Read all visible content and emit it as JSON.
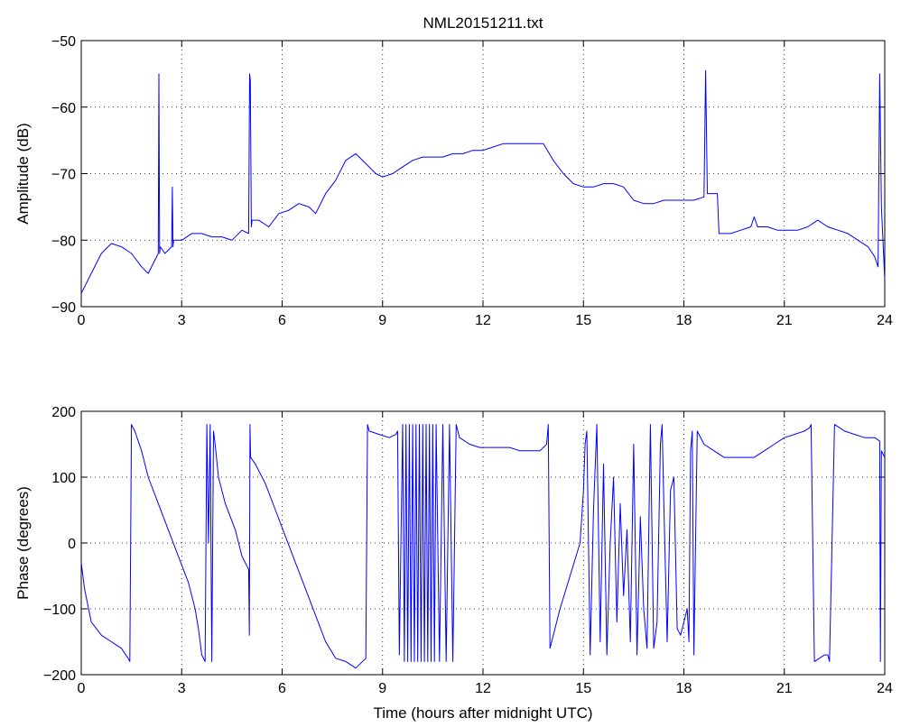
{
  "chart_data": [
    {
      "type": "line",
      "title": "NML20151211.txt",
      "xlabel": "",
      "ylabel": "Amplitude (dB)",
      "xlim": [
        0,
        24
      ],
      "ylim": [
        -90,
        -50
      ],
      "xticks": [
        "0",
        "3",
        "6",
        "9",
        "12",
        "15",
        "18",
        "21",
        "24"
      ],
      "yticks": [
        "−50",
        "−60",
        "−70",
        "−80",
        "−90"
      ],
      "grid": true,
      "color": "#0000ff",
      "x": [
        0,
        0.3,
        0.6,
        0.9,
        1.2,
        1.5,
        1.8,
        2.0,
        2.2,
        2.3,
        2.32,
        2.34,
        2.36,
        2.5,
        2.7,
        2.72,
        2.74,
        2.76,
        3.0,
        3.3,
        3.6,
        3.9,
        4.2,
        4.5,
        4.8,
        5.0,
        5.03,
        5.05,
        5.08,
        5.1,
        5.3,
        5.6,
        5.9,
        6.2,
        6.5,
        6.8,
        7.0,
        7.3,
        7.6,
        7.9,
        8.2,
        8.5,
        8.8,
        9.0,
        9.3,
        9.6,
        9.9,
        10.2,
        10.5,
        10.8,
        11.1,
        11.4,
        11.7,
        12.0,
        12.3,
        12.6,
        12.9,
        13.2,
        13.5,
        13.8,
        14.1,
        14.4,
        14.7,
        15.0,
        15.3,
        15.6,
        15.9,
        16.2,
        16.5,
        16.8,
        17.1,
        17.4,
        17.7,
        18.0,
        18.3,
        18.6,
        18.65,
        18.7,
        18.75,
        18.9,
        19.0,
        19.05,
        19.1,
        19.4,
        19.7,
        20.0,
        20.1,
        20.2,
        20.5,
        20.8,
        21.1,
        21.4,
        21.7,
        22.0,
        22.3,
        22.6,
        22.9,
        23.2,
        23.5,
        23.7,
        23.8,
        23.85,
        23.9,
        24.0
      ],
      "y": [
        -88,
        -85,
        -82,
        -80.5,
        -81,
        -82,
        -84,
        -85,
        -83,
        -82,
        -55,
        -82,
        -81,
        -82,
        -81,
        -72,
        -81,
        -80,
        -80,
        -79,
        -79,
        -79.5,
        -79.5,
        -80,
        -78.5,
        -79,
        -55,
        -56,
        -78,
        -77,
        -77,
        -78,
        -76,
        -75.5,
        -74.5,
        -75,
        -76,
        -73,
        -71,
        -68,
        -67,
        -68.5,
        -70,
        -70.5,
        -70,
        -69,
        -68,
        -67.5,
        -67.5,
        -67.5,
        -67,
        -67,
        -66.5,
        -66.5,
        -66,
        -65.5,
        -65.5,
        -65.5,
        -65.5,
        -65.5,
        -68,
        -70,
        -71.5,
        -72,
        -72,
        -71.5,
        -71.5,
        -72,
        -74,
        -74.5,
        -74.5,
        -74,
        -74,
        -74,
        -74,
        -73.5,
        -54.5,
        -73,
        -73,
        -73,
        -73,
        -79,
        -79,
        -79,
        -78.5,
        -78,
        -76.5,
        -78,
        -78,
        -78.5,
        -78.5,
        -78.5,
        -78,
        -77,
        -78,
        -78.5,
        -79,
        -80,
        -81,
        -82.5,
        -84,
        -55,
        -75,
        -86
      ]
    },
    {
      "type": "line",
      "title": "",
      "xlabel": "Time (hours after midnight UTC)",
      "ylabel": "Phase (degrees)",
      "xlim": [
        0,
        24
      ],
      "ylim": [
        -200,
        200
      ],
      "xticks": [
        "0",
        "3",
        "6",
        "9",
        "12",
        "15",
        "18",
        "21",
        "24"
      ],
      "yticks": [
        "200",
        "100",
        "0",
        "−100",
        "−200"
      ],
      "grid": true,
      "color": "#0000ff",
      "x": [
        0,
        0.1,
        0.3,
        0.6,
        0.9,
        1.2,
        1.4,
        1.45,
        1.5,
        1.6,
        1.8,
        2.0,
        2.3,
        2.6,
        2.9,
        3.2,
        3.4,
        3.5,
        3.6,
        3.7,
        3.75,
        3.8,
        3.85,
        3.9,
        3.95,
        4.0,
        4.1,
        4.3,
        4.6,
        4.8,
        5.0,
        5.02,
        5.04,
        5.06,
        5.2,
        5.5,
        5.8,
        6.1,
        6.4,
        6.7,
        7.0,
        7.3,
        7.6,
        7.9,
        8.2,
        8.5,
        8.55,
        8.6,
        8.9,
        9.2,
        9.4,
        9.45,
        9.5,
        9.6,
        9.65,
        9.7,
        9.75,
        9.8,
        9.85,
        9.9,
        9.95,
        10.0,
        10.05,
        10.1,
        10.15,
        10.2,
        10.25,
        10.3,
        10.35,
        10.4,
        10.45,
        10.5,
        10.55,
        10.6,
        10.7,
        10.8,
        10.9,
        11.0,
        11.1,
        11.2,
        11.3,
        11.6,
        11.9,
        12.2,
        12.5,
        12.8,
        13.1,
        13.4,
        13.7,
        13.9,
        13.95,
        14.0,
        14.3,
        14.6,
        14.9,
        15.0,
        15.05,
        15.1,
        15.2,
        15.3,
        15.4,
        15.5,
        15.6,
        15.7,
        15.8,
        15.9,
        16.0,
        16.1,
        16.2,
        16.3,
        16.4,
        16.5,
        16.6,
        16.7,
        16.8,
        16.9,
        17.0,
        17.1,
        17.2,
        17.3,
        17.35,
        17.4,
        17.5,
        17.6,
        17.7,
        17.8,
        17.9,
        18.0,
        18.1,
        18.15,
        18.2,
        18.25,
        18.3,
        18.4,
        18.6,
        18.9,
        19.2,
        19.5,
        19.8,
        20.1,
        20.4,
        20.7,
        21.0,
        21.3,
        21.6,
        21.75,
        21.8,
        21.9,
        22.2,
        22.3,
        22.35,
        22.5,
        22.8,
        23.1,
        23.4,
        23.7,
        23.85,
        23.87,
        23.9,
        24.0
      ],
      "y": [
        -30,
        -70,
        -120,
        -140,
        -150,
        -160,
        -175,
        -180,
        180,
        170,
        140,
        100,
        60,
        20,
        -20,
        -60,
        -100,
        -130,
        -170,
        -180,
        180,
        0,
        180,
        -180,
        170,
        150,
        100,
        60,
        20,
        -20,
        -40,
        -140,
        180,
        130,
        120,
        90,
        50,
        10,
        -30,
        -70,
        -110,
        -150,
        -175,
        -180,
        -190,
        -175,
        180,
        170,
        165,
        160,
        165,
        170,
        -170,
        180,
        -180,
        180,
        -180,
        180,
        -180,
        180,
        -180,
        180,
        -180,
        180,
        -180,
        180,
        -180,
        180,
        -180,
        180,
        -180,
        180,
        -180,
        180,
        -180,
        180,
        -180,
        180,
        -180,
        180,
        160,
        150,
        145,
        145,
        145,
        145,
        140,
        140,
        140,
        150,
        180,
        -160,
        -100,
        -50,
        0,
        80,
        150,
        170,
        -170,
        50,
        180,
        -150,
        120,
        -170,
        0,
        100,
        -120,
        60,
        -80,
        20,
        -150,
        150,
        -170,
        40,
        -100,
        -160,
        180,
        -160,
        -120,
        150,
        180,
        60,
        -150,
        80,
        100,
        -130,
        -140,
        -120,
        -100,
        -150,
        140,
        170,
        -170,
        170,
        150,
        140,
        130,
        130,
        130,
        130,
        140,
        150,
        160,
        165,
        170,
        175,
        180,
        -180,
        -170,
        -170,
        -180,
        180,
        170,
        165,
        160,
        160,
        155,
        -180,
        140,
        130
      ]
    }
  ]
}
